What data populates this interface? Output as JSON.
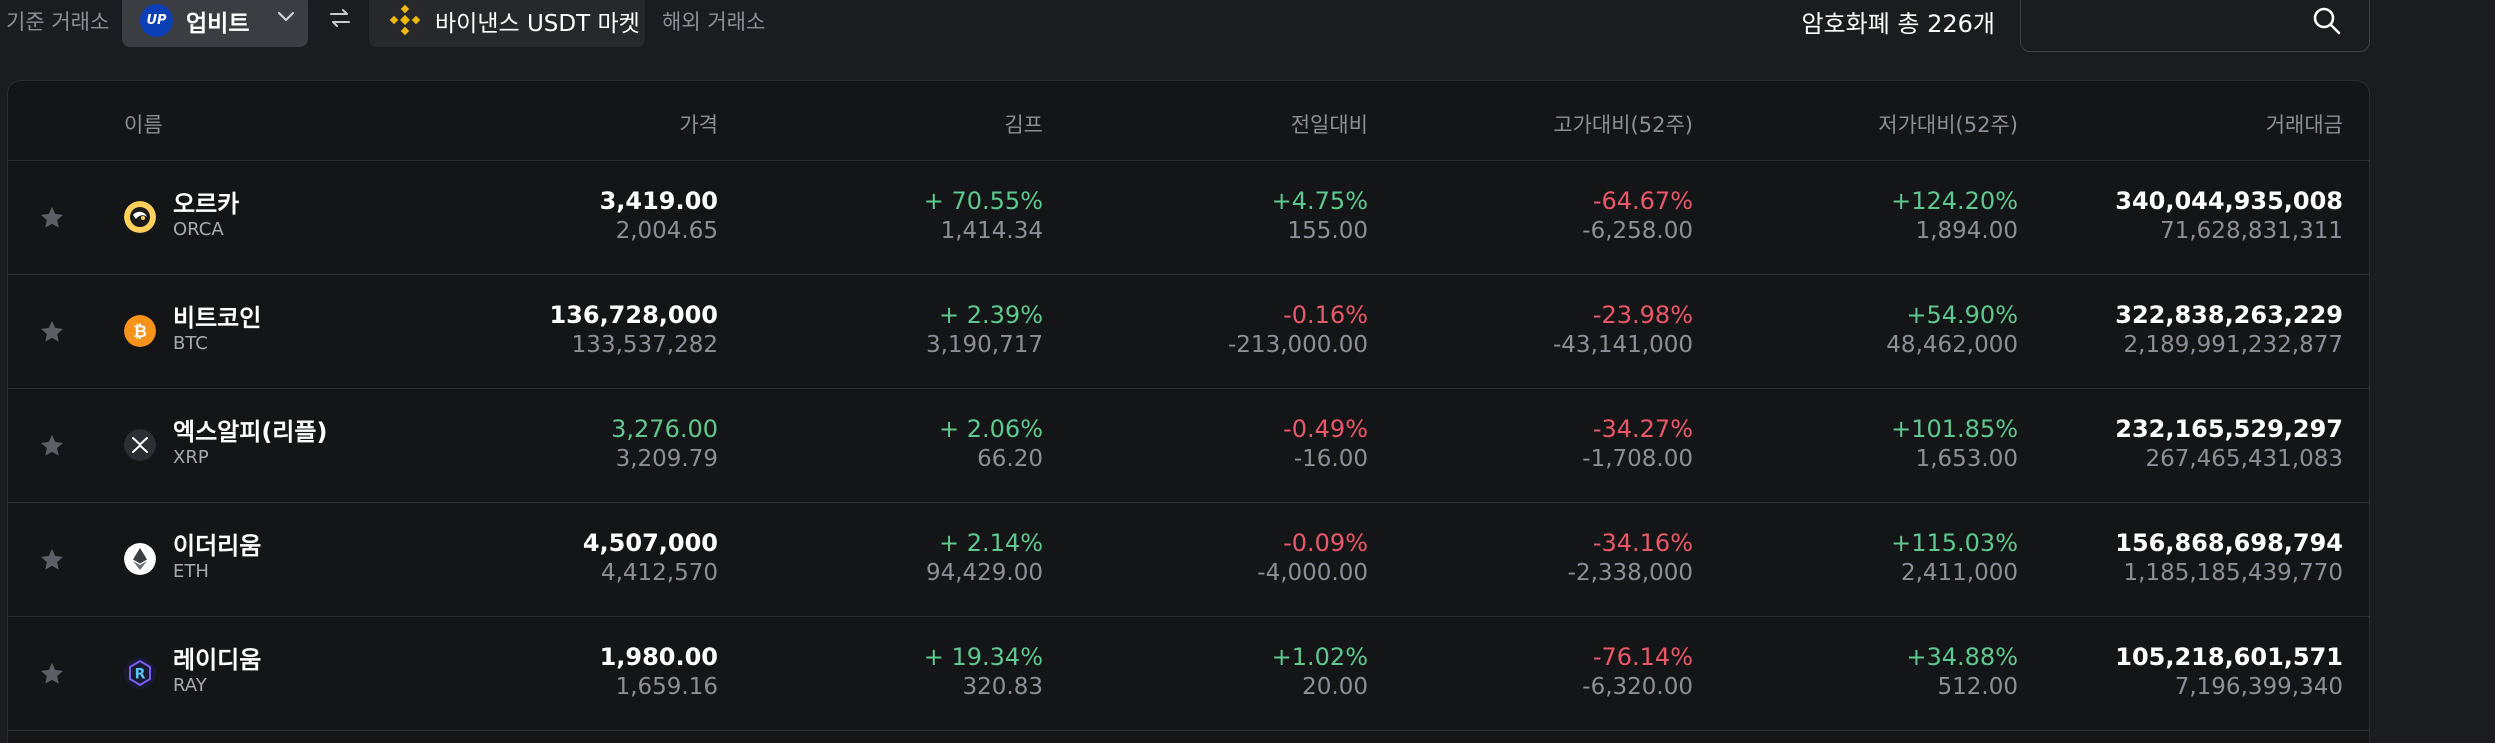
{
  "topbar": {
    "base_label": "기준 거래소",
    "exchange_name": "업비트",
    "exchange_logo_text": "UP",
    "binance_label": "바이낸스 USDT 마켓",
    "overseas_label": "해외 거래소",
    "total_label": "암호화폐 총 226개",
    "search_placeholder": "",
    "colors": {
      "accent_upbit": "#0a3fb5",
      "accent_binance": "#f0b90b"
    }
  },
  "table": {
    "headers": {
      "name": "이름",
      "price": "가격",
      "kimp": "김프",
      "day_change": "전일대비",
      "high_52w": "고가대비(52주)",
      "low_52w": "저가대비(52주)",
      "volume": "거래대금"
    },
    "rows": [
      {
        "name": "오르카",
        "symbol": "ORCA",
        "icon": "orca-icon",
        "price": "3,419.00",
        "price_sub": "2,004.65",
        "kimp": "+ 70.55%",
        "kimp_sub": "1,414.34",
        "day": "+4.75%",
        "day_sub": "155.00",
        "high": "-64.67%",
        "high_sub": "-6,258.00",
        "low": "+124.20%",
        "low_sub": "1,894.00",
        "vol": "340,044,935,008",
        "vol_sub": "71,628,831,311"
      },
      {
        "name": "비트코인",
        "symbol": "BTC",
        "icon": "bitcoin-icon",
        "price": "136,728,000",
        "price_sub": "133,537,282",
        "kimp": "+ 2.39%",
        "kimp_sub": "3,190,717",
        "day": "-0.16%",
        "day_sub": "-213,000.00",
        "high": "-23.98%",
        "high_sub": "-43,141,000",
        "low": "+54.90%",
        "low_sub": "48,462,000",
        "vol": "322,838,263,229",
        "vol_sub": "2,189,991,232,877"
      },
      {
        "name": "엑스알피(리플)",
        "symbol": "XRP",
        "icon": "xrp-icon",
        "price": "3,276.00",
        "price_sub": "3,209.79",
        "kimp": "+ 2.06%",
        "kimp_sub": "66.20",
        "day": "-0.49%",
        "day_sub": "-16.00",
        "high": "-34.27%",
        "high_sub": "-1,708.00",
        "low": "+101.85%",
        "low_sub": "1,653.00",
        "vol": "232,165,529,297",
        "vol_sub": "267,465,431,083"
      },
      {
        "name": "이더리움",
        "symbol": "ETH",
        "icon": "ethereum-icon",
        "price": "4,507,000",
        "price_sub": "4,412,570",
        "kimp": "+ 2.14%",
        "kimp_sub": "94,429.00",
        "day": "-0.09%",
        "day_sub": "-4,000.00",
        "high": "-34.16%",
        "high_sub": "-2,338,000",
        "low": "+115.03%",
        "low_sub": "2,411,000",
        "vol": "156,868,698,794",
        "vol_sub": "1,185,185,439,770"
      },
      {
        "name": "레이디움",
        "symbol": "RAY",
        "icon": "raydium-icon",
        "price": "1,980.00",
        "price_sub": "1,659.16",
        "kimp": "+ 19.34%",
        "kimp_sub": "320.83",
        "day": "+1.02%",
        "day_sub": "20.00",
        "high": "-76.14%",
        "high_sub": "-6,320.00",
        "low": "+34.88%",
        "low_sub": "512.00",
        "vol": "105,218,601,571",
        "vol_sub": "7,196,399,340"
      }
    ],
    "colors": {
      "up": "#5ec88f",
      "down": "#ea5768",
      "neutral": "#ffffff"
    }
  }
}
